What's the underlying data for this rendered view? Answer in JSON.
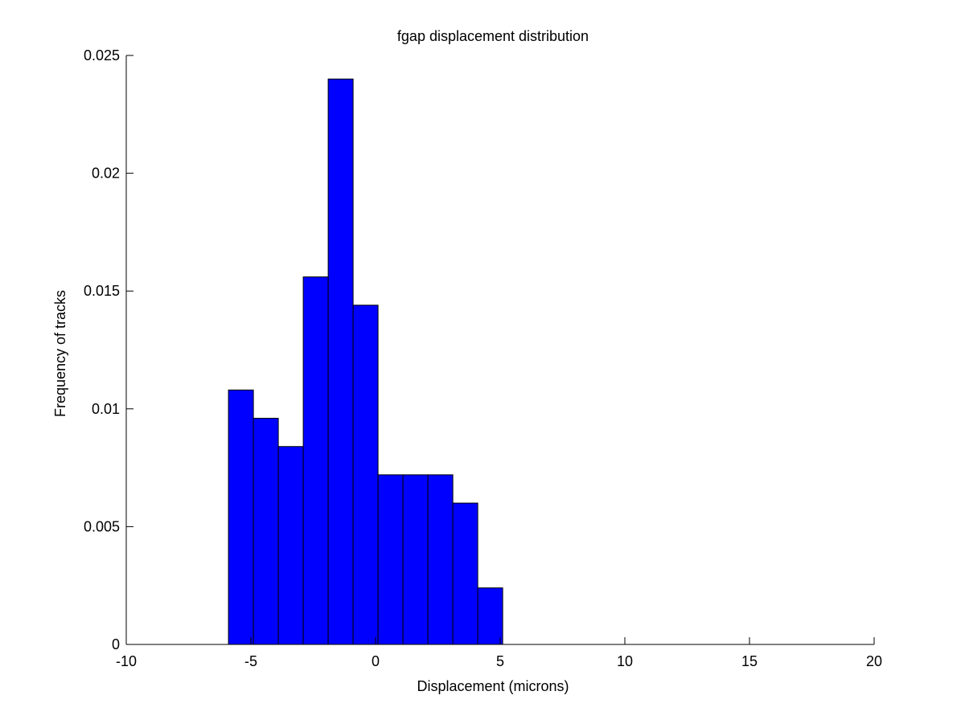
{
  "chart_data": {
    "type": "bar",
    "title": "fgap displacement distribution",
    "xlabel": "Displacement (microns)",
    "ylabel": "Frequency of tracks",
    "xlim": [
      -10,
      20
    ],
    "ylim": [
      0,
      0.025
    ],
    "xticks": [
      -10,
      -5,
      0,
      5,
      10,
      15,
      20
    ],
    "xtick_labels": [
      "-10",
      "-5",
      "0",
      "5",
      "10",
      "15",
      "20"
    ],
    "yticks": [
      0,
      0.005,
      0.01,
      0.015,
      0.02,
      0.025
    ],
    "ytick_labels": [
      "0",
      "0.005",
      "0.01",
      "0.015",
      "0.02",
      "0.025"
    ],
    "bin_edges": [
      -5.9,
      -4.9,
      -3.9,
      -2.9,
      -1.9,
      -0.9,
      0.1,
      1.1,
      2.1,
      3.1,
      4.1,
      5.1
    ],
    "values": [
      0.0108,
      0.0096,
      0.0084,
      0.0156,
      0.024,
      0.0144,
      0.0072,
      0.0072,
      0.0072,
      0.006,
      0.0024
    ],
    "bar_color": "#0000ff",
    "edge_color": "#000000",
    "grid": false
  }
}
